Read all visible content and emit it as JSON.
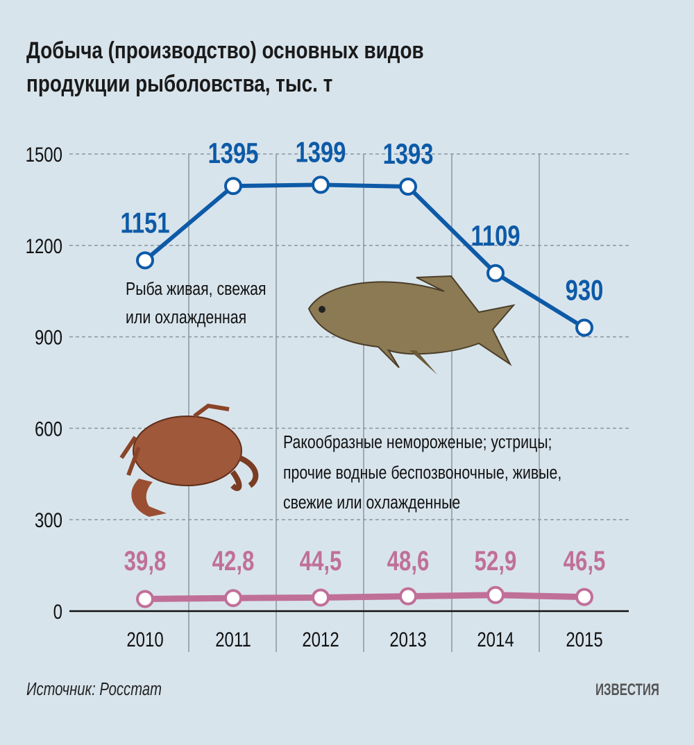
{
  "chart_data": {
    "type": "line",
    "title": "Добыча (производство) основных видов продукции рыболовства, тыс. т",
    "title_lines": [
      "Добыча (производство) основных видов",
      "продукции рыболовства, тыс. т"
    ],
    "categories": [
      "2010",
      "2011",
      "2012",
      "2013",
      "2014",
      "2015"
    ],
    "ylim": [
      0,
      1500
    ],
    "yticks": [
      0,
      300,
      600,
      900,
      1200,
      1500
    ],
    "ytick_labels": [
      "0",
      "300",
      "600",
      "900",
      "1200",
      "1500"
    ],
    "grid": true,
    "series": [
      {
        "name": "Рыба живая, свежая или охлажденная",
        "name_lines": [
          "Рыба живая, свежая",
          "или охлажденная"
        ],
        "color": "#0d5aa7",
        "values": [
          1151,
          1395,
          1399,
          1393,
          1109,
          930
        ],
        "labels": [
          "1151",
          "1395",
          "1399",
          "1393",
          "1109",
          "930"
        ]
      },
      {
        "name": "Ракообразные немороженые; устрицы; прочие водные беспозвоночные, живые, свежие или охлажденные",
        "name_lines": [
          "Ракообразные немороженые; устрицы;",
          "прочие водные беспозвоночные, живые,",
          "свежие или охлажденные"
        ],
        "color": "#c07098",
        "values": [
          39.8,
          42.8,
          44.5,
          48.6,
          52.9,
          46.5
        ],
        "labels": [
          "39,8",
          "42,8",
          "44,5",
          "48,6",
          "52,9",
          "46,5"
        ]
      }
    ]
  },
  "source": "Источник: Росстат",
  "logo": "ИЗВЕСТИЯ",
  "background": "#d8e4ec"
}
